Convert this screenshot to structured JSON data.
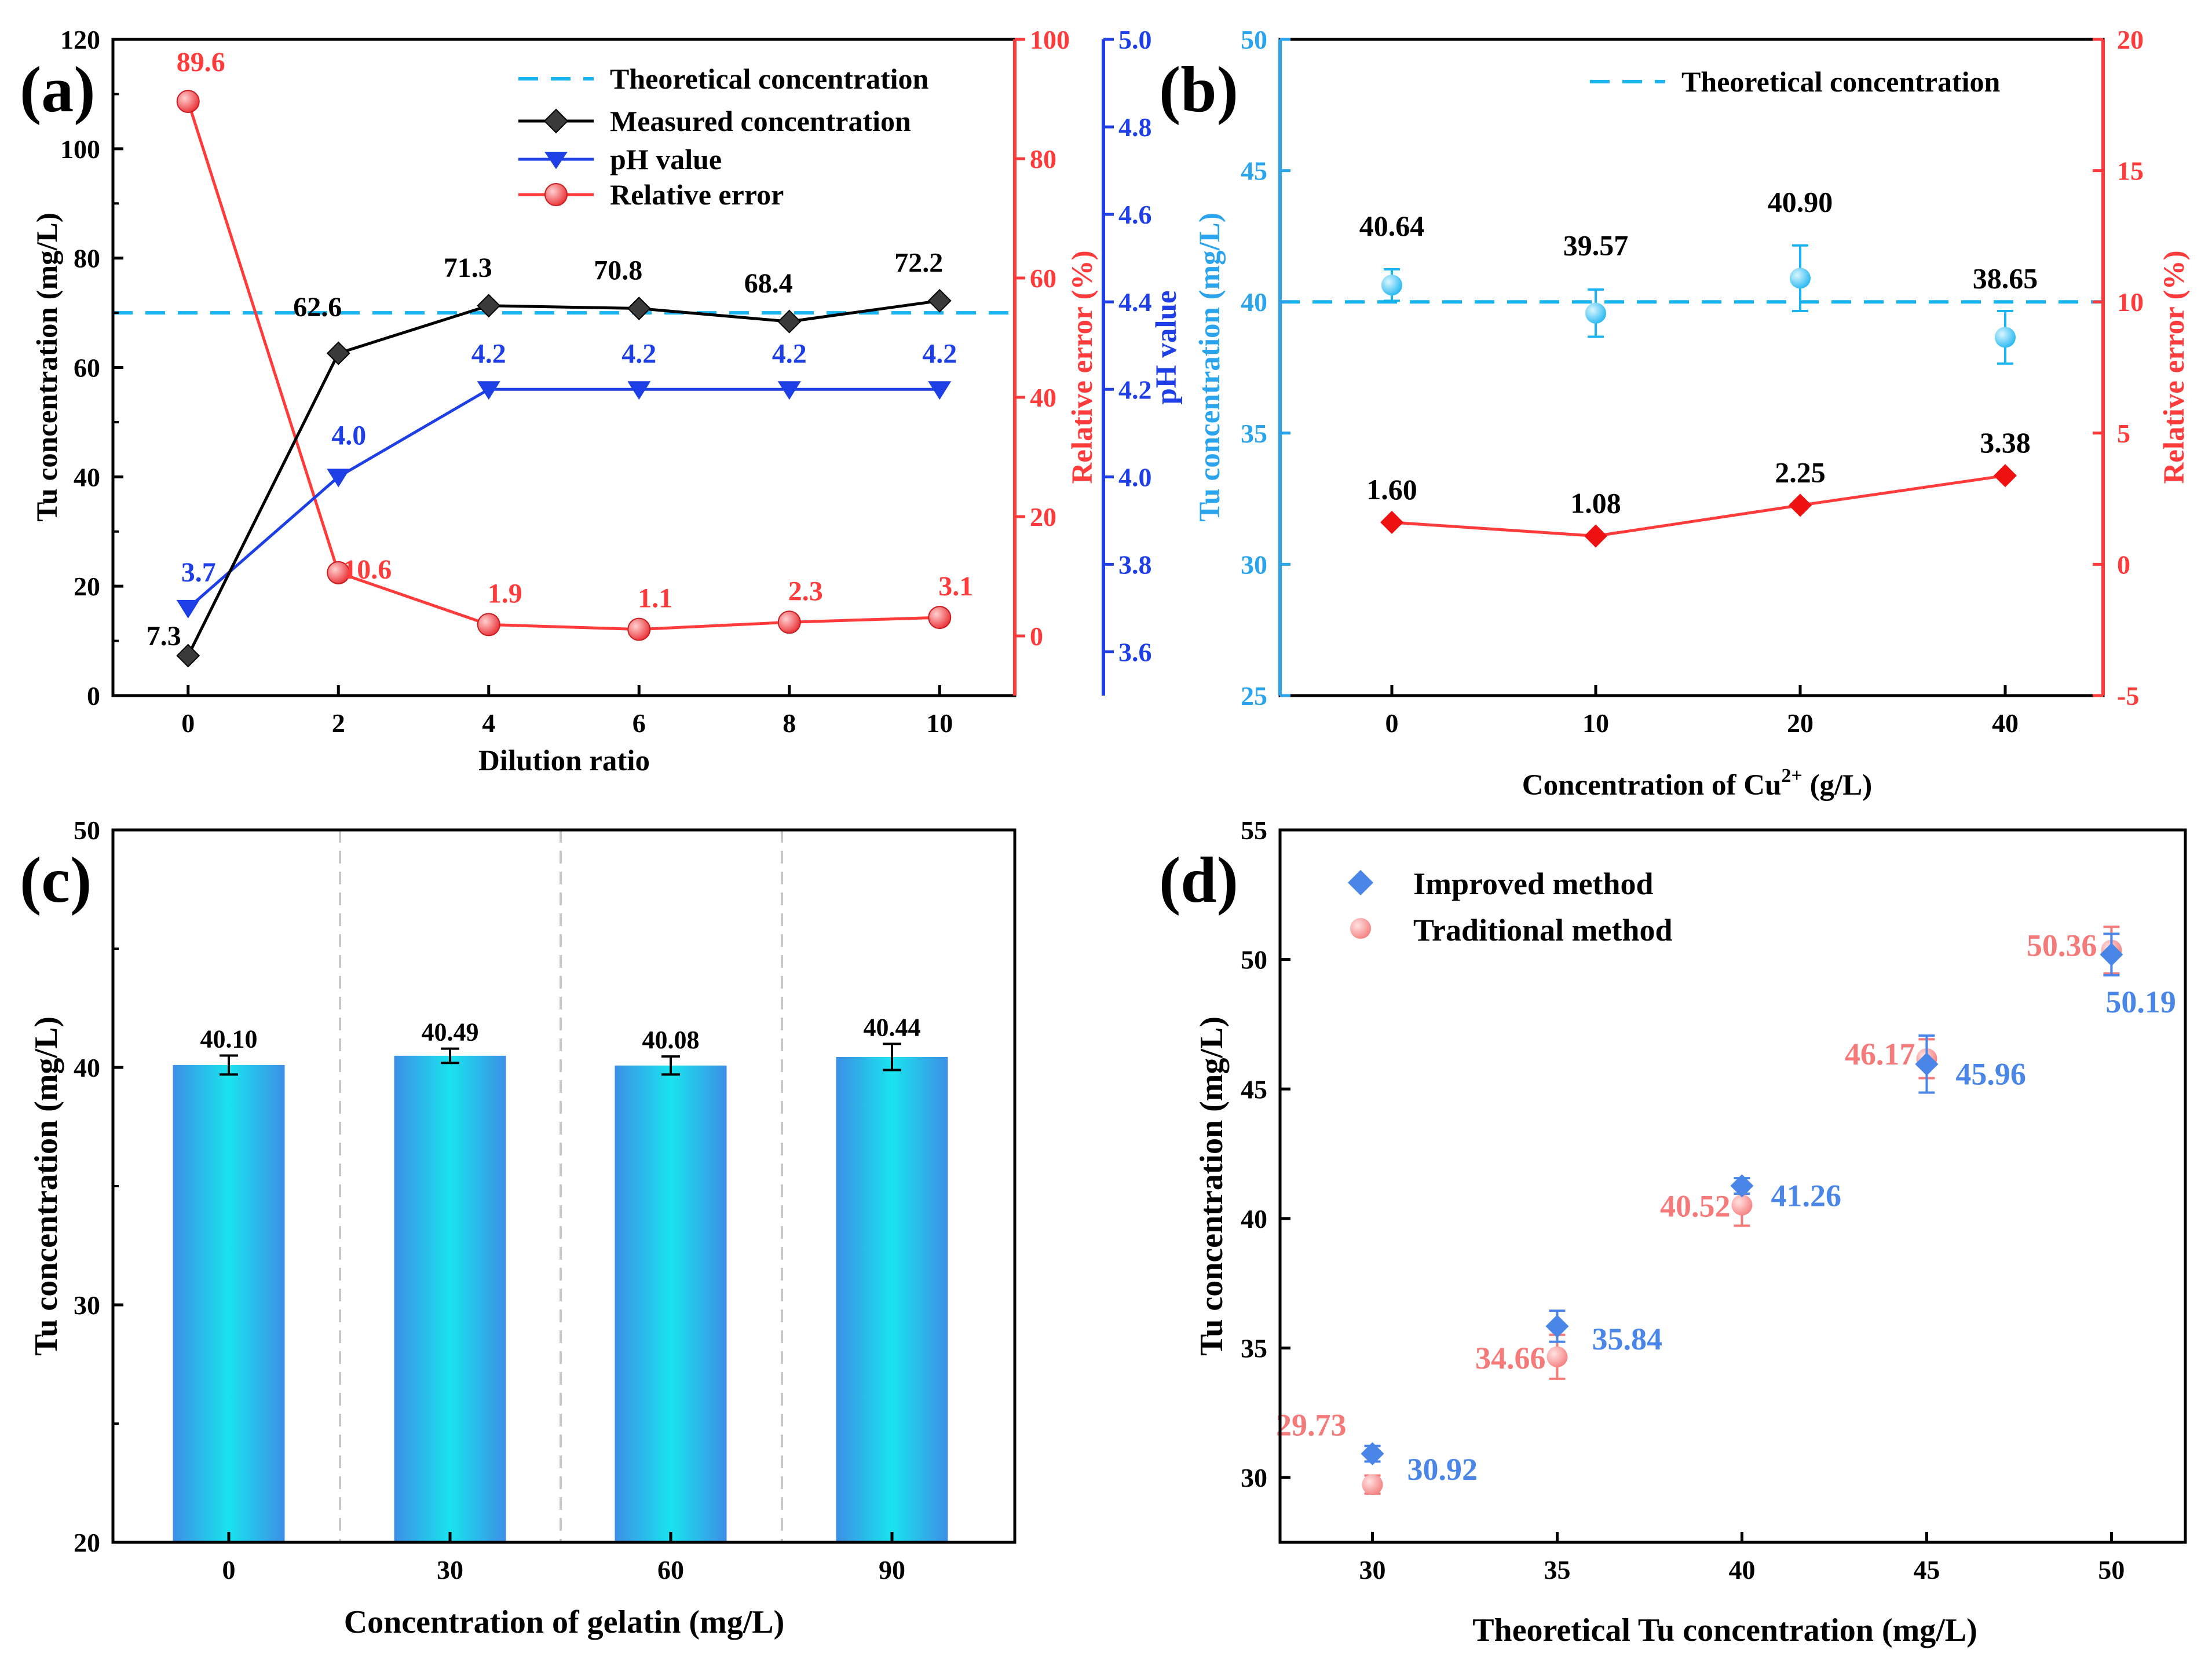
{
  "colors": {
    "black": "#000000",
    "red": "#ff3b3b",
    "blue": "#1f3fe6",
    "cyan": "#1ab4f0",
    "lightBlue": "#2ba4ee",
    "improved": "#4a86e8",
    "traditional": "#f57a7a",
    "barEdge": "#3d8fe6",
    "barCenter": "#19e3ee",
    "grid": "#c8c8c8"
  },
  "chart_data": [
    {
      "id": "a",
      "type": "line",
      "panel_label": "(a)",
      "xlabel": "Dilution ratio",
      "ylabel": "Tu concentration (mg/L)",
      "y2label": "Relative error (%)",
      "y3label": "pH value",
      "x": [
        0,
        2,
        4,
        6,
        8,
        10
      ],
      "xlim": [
        -1,
        11
      ],
      "ylim": [
        0,
        120
      ],
      "y2lim": [
        -10,
        100
      ],
      "y3lim": [
        3.5,
        5.0
      ],
      "xticks": [
        0,
        2,
        4,
        6,
        8,
        10
      ],
      "yticks": [
        0,
        20,
        40,
        60,
        80,
        100,
        120
      ],
      "y2ticks": [
        0,
        20,
        40,
        60,
        80,
        100
      ],
      "y3ticks": [
        3.6,
        3.8,
        4.0,
        4.2,
        4.4,
        4.6,
        4.8,
        5.0
      ],
      "theoretical": 70,
      "series": [
        {
          "name": "Measured concentration",
          "axis": "left",
          "values": [
            7.3,
            62.6,
            71.3,
            70.8,
            68.4,
            72.2
          ],
          "labels": [
            "7.3",
            "62.6",
            "71.3",
            "70.8",
            "68.4",
            "72.2"
          ]
        },
        {
          "name": "pH value",
          "axis": "ph",
          "values": [
            3.7,
            4.0,
            4.2,
            4.2,
            4.2,
            4.2
          ],
          "labels": [
            "3.7",
            "4.0",
            "4.2",
            "4.2",
            "4.2",
            "4.2"
          ]
        },
        {
          "name": "Relative error",
          "axis": "right",
          "values": [
            89.6,
            10.6,
            1.9,
            1.1,
            2.3,
            3.1
          ],
          "labels": [
            "89.6",
            "10.6",
            "1.9",
            "1.1",
            "2.3",
            "3.1"
          ]
        }
      ],
      "legend": [
        "Theoretical concentration",
        "Measured concentration",
        "pH value",
        "Relative error"
      ],
      "legend_position": "top-right"
    },
    {
      "id": "b",
      "type": "scatter",
      "panel_label": "(b)",
      "xlabel": "Concentration of Cu",
      "xlabel_sup": "2+",
      "xlabel_tail": " (g/L)",
      "ylabel": "Tu concentration (mg/L)",
      "y2label": "Relative error (%)",
      "categories": [
        "0",
        "10",
        "20",
        "40"
      ],
      "ylim": [
        25,
        50
      ],
      "y2lim": [
        -5,
        20
      ],
      "yticks": [
        25,
        30,
        35,
        40,
        45,
        50
      ],
      "y2ticks": [
        -5,
        0,
        5,
        10,
        15,
        20
      ],
      "theoretical": 40,
      "series": [
        {
          "name": "Tu concentration",
          "axis": "left",
          "values": [
            40.64,
            39.57,
            40.9,
            38.65
          ],
          "errors": [
            0.6,
            0.9,
            1.25,
            1.0
          ],
          "labels": [
            "40.64",
            "39.57",
            "40.90",
            "38.65"
          ]
        },
        {
          "name": "Relative error",
          "axis": "right",
          "values": [
            1.6,
            1.08,
            2.25,
            3.38
          ],
          "labels": [
            "1.60",
            "1.08",
            "2.25",
            "3.38"
          ]
        }
      ],
      "legend": [
        "Theoretical concentration"
      ],
      "legend_position": "top-right"
    },
    {
      "id": "c",
      "type": "bar",
      "panel_label": "(c)",
      "xlabel": "Concentration of gelatin (mg/L)",
      "ylabel": "Tu concentration (mg/L)",
      "categories": [
        "0",
        "30",
        "60",
        "90"
      ],
      "values": [
        40.1,
        40.49,
        40.08,
        40.44
      ],
      "errors": [
        0.4,
        0.3,
        0.38,
        0.55
      ],
      "labels": [
        "40.10",
        "40.49",
        "40.08",
        "40.44"
      ],
      "ylim": [
        20,
        50
      ],
      "yticks": [
        20,
        30,
        40,
        50
      ]
    },
    {
      "id": "d",
      "type": "scatter",
      "panel_label": "(d)",
      "xlabel": "Theoretical Tu concentration (mg/L)",
      "ylabel": "Tu concentration (mg/L)",
      "x": [
        30,
        35,
        40,
        45,
        50
      ],
      "xlim": [
        27.5,
        52
      ],
      "ylim": [
        27.5,
        55
      ],
      "xticks": [
        30,
        35,
        40,
        45,
        50
      ],
      "yticks": [
        30,
        35,
        40,
        45,
        50,
        55
      ],
      "series": [
        {
          "name": "Improved method",
          "values": [
            30.92,
            35.84,
            41.26,
            45.96,
            50.19
          ],
          "errors": [
            0.3,
            0.6,
            0.3,
            1.1,
            0.8
          ],
          "labels": [
            "30.92",
            "35.84",
            "41.26",
            "45.96",
            "50.19"
          ]
        },
        {
          "name": "Traditional method",
          "values": [
            29.73,
            34.66,
            40.52,
            46.17,
            50.36
          ],
          "errors": [
            0.35,
            0.85,
            0.8,
            0.75,
            0.9
          ],
          "labels": [
            "29.73",
            "34.66",
            "40.52",
            "46.17",
            "50.36"
          ]
        }
      ],
      "legend": [
        "Improved method",
        "Traditional method"
      ],
      "legend_position": "top-left"
    }
  ]
}
